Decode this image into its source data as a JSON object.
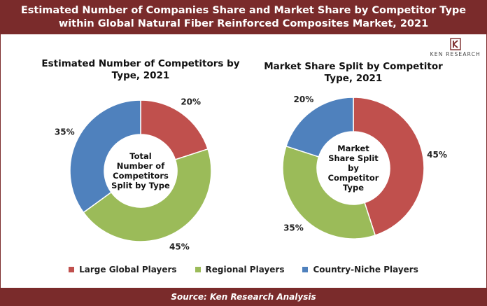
{
  "header": {
    "title_line1": "Estimated Number of Companies Share and Market Share by Competitor Type",
    "title_line2": "within Global Natural Fiber Reinforced Composites Market, 2021"
  },
  "logo": {
    "text": "KEN RESEARCH",
    "icon": "ken-research-logo"
  },
  "footer": {
    "source": "Source: Ken Research Analysis"
  },
  "colors": {
    "red": "#c0504d",
    "green": "#9bbb59",
    "blue": "#4f81bd",
    "brand": "#7a2b2b"
  },
  "chart_data": [
    {
      "type": "pie",
      "variant": "donut",
      "title_lines": [
        "Estimated Number of Competitors by",
        "Type, 2021"
      ],
      "center_label": [
        "Total",
        "Number of",
        "Competitors",
        "Split by Type"
      ],
      "categories": [
        "Large Global Players",
        "Regional Players",
        "Country-Niche Players"
      ],
      "values": [
        20,
        45,
        35
      ],
      "labels": [
        "20%",
        "45%",
        "35%"
      ],
      "colors": [
        "#c0504d",
        "#9bbb59",
        "#4f81bd"
      ]
    },
    {
      "type": "pie",
      "variant": "donut",
      "title_lines": [
        "Market Share Split by Competitor",
        "Type, 2021"
      ],
      "center_label": [
        "Market",
        "Share Split",
        "by",
        "Competitor",
        "Type"
      ],
      "categories": [
        "Large Global Players",
        "Regional Players",
        "Country-Niche Players"
      ],
      "values": [
        45,
        35,
        20
      ],
      "labels": [
        "45%",
        "35%",
        "20%"
      ],
      "colors": [
        "#c0504d",
        "#9bbb59",
        "#4f81bd"
      ]
    }
  ],
  "legend": {
    "placement": "bottom",
    "items": [
      {
        "label": "Large Global Players",
        "color": "#c0504d"
      },
      {
        "label": "Regional Players",
        "color": "#9bbb59"
      },
      {
        "label": "Country-Niche Players",
        "color": "#4f81bd"
      }
    ]
  }
}
